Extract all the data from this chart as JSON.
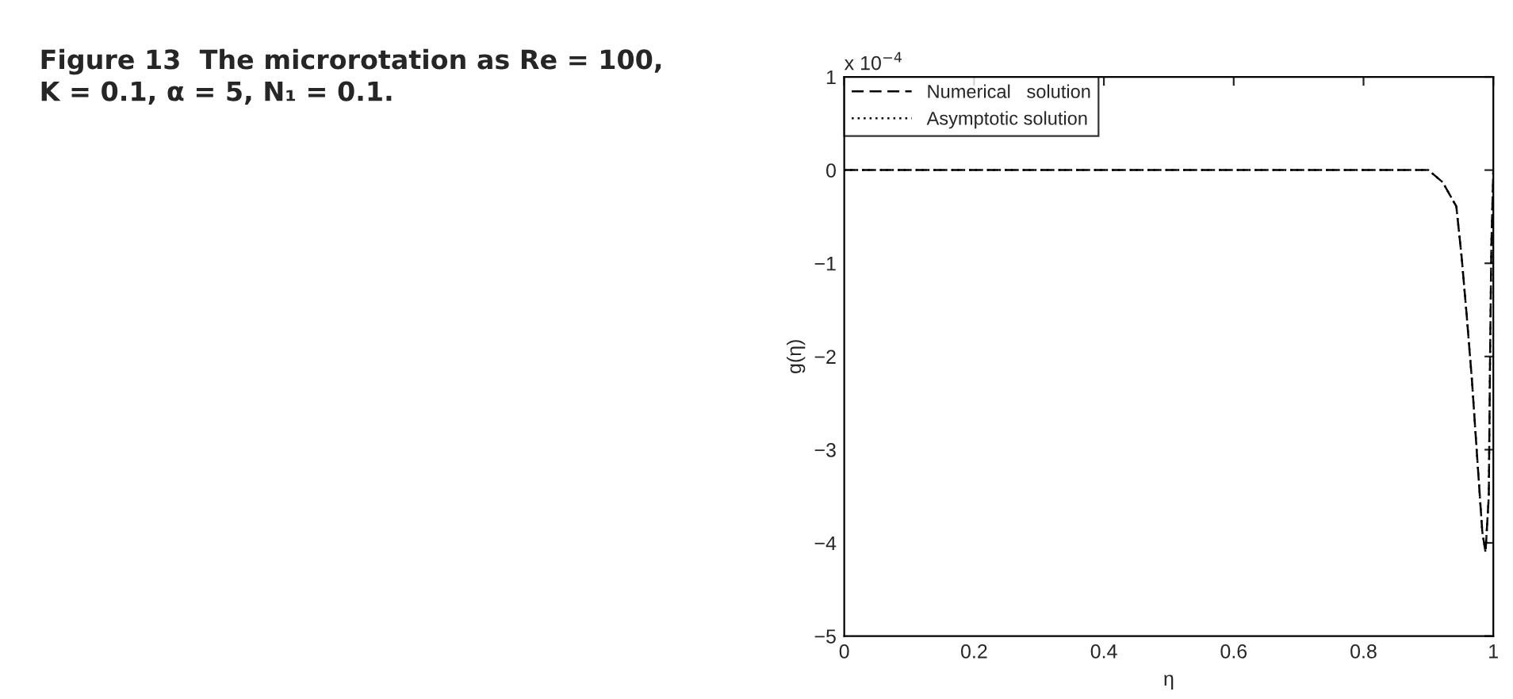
{
  "chart_data": {
    "type": "line",
    "title": "Figure 13  The microrotation as Re = 100, K = 0.1, α = 5, N₁ = 0.1.",
    "xlabel": "η",
    "ylabel": "g(η)",
    "annotations": [
      "x 10$^{−4}$"
    ],
    "xlim": [
      0,
      1
    ],
    "ylim": [
      -5,
      1
    ],
    "xticks": [
      0,
      0.2,
      0.4,
      0.6,
      0.8,
      1
    ],
    "yticks": [
      {
        "value": -5,
        "label": "−5"
      },
      {
        "value": -4,
        "label": "−4"
      },
      {
        "value": -3,
        "label": "−3"
      },
      {
        "value": -2,
        "label": "−2"
      },
      {
        "value": -1,
        "label": "−1"
      },
      0,
      1
    ],
    "grid": false,
    "legend": "top left",
    "marker": "none",
    "series": [
      {
        "name": "Numerical   solution",
        "color": "#000000",
        "line_style": "dashed",
        "x": [
          0,
          0.5,
          0.9,
          0.922,
          0.943,
          0.951,
          0.959,
          0.967,
          0.975,
          0.983,
          0.988,
          0.993,
          0.995,
          0.997,
          1
        ],
        "values": [
          0,
          0,
          0,
          -0.13,
          -0.39,
          -0.92,
          -1.56,
          -2.25,
          -3.07,
          -3.88,
          -4.1,
          -3.5,
          -2.0,
          -0.8,
          0
        ]
      },
      {
        "name": "Asymptotic solution",
        "color": "#000000",
        "line_style": "dotted",
        "x": [
          0,
          0.5,
          0.9,
          0.922,
          0.943,
          0.951,
          0.959,
          0.967,
          0.975,
          0.983,
          0.988,
          0.993,
          0.995,
          0.997,
          1
        ],
        "values": [
          0,
          0,
          0,
          -0.13,
          -0.39,
          -0.92,
          -1.56,
          -2.25,
          -3.07,
          -3.88,
          -4.1,
          -3.5,
          -2.0,
          -0.8,
          0
        ]
      }
    ]
  }
}
